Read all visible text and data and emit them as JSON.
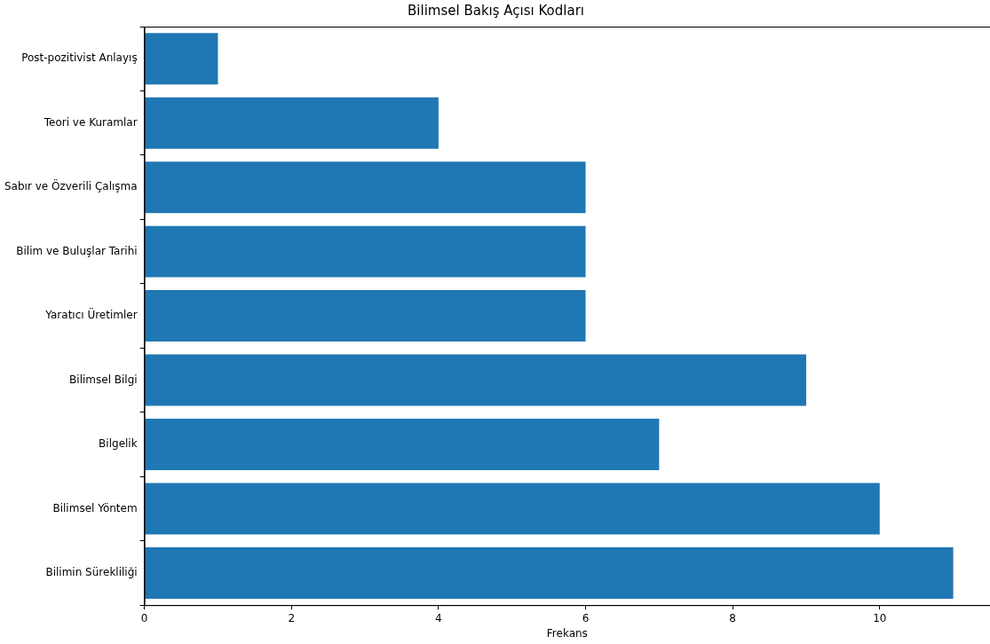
{
  "chart_data": {
    "type": "bar",
    "orientation": "horizontal",
    "title": "Bilimsel Bakış Açısı Kodları",
    "xlabel": "Frekans",
    "categories": [
      "Post-pozitivist Anlayış",
      "Teori ve Kuramlar",
      "Sabır ve Özverili Çalışma",
      "Bilim ve Buluşlar Tarihi",
      "Yaratıcı Üretimler",
      "Bilimsel Bilgi",
      "Bilgelik",
      "Bilimsel Yöntem",
      "Bilimin Sürekliliği"
    ],
    "values": [
      1,
      4,
      6,
      6,
      6,
      9,
      7,
      10,
      11
    ],
    "color": "#1f77b4",
    "xlim": [
      0,
      11.5
    ],
    "xticks": [
      0,
      2,
      4,
      6,
      8,
      10
    ],
    "grid": false,
    "legend": false
  }
}
